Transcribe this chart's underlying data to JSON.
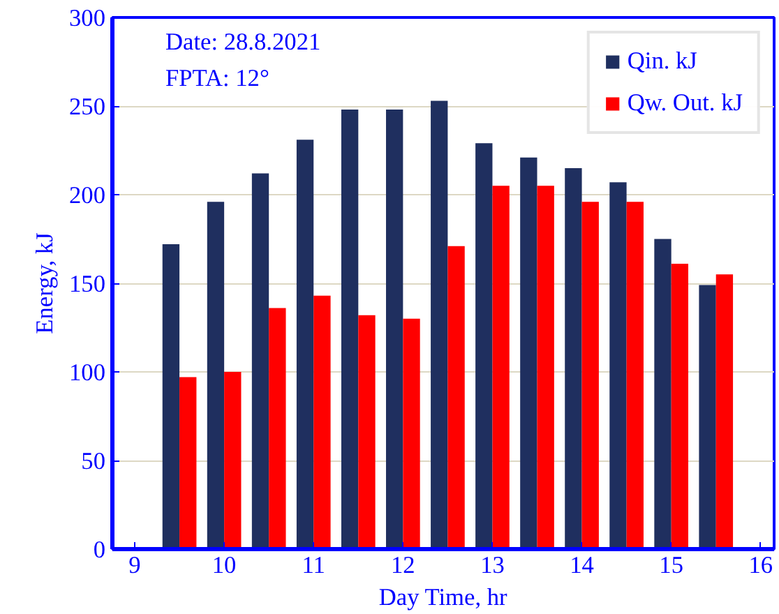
{
  "chart_data": {
    "type": "bar",
    "xlabel": "Day Time, hr",
    "ylabel": "Energy, kJ",
    "x": [
      9.5,
      10,
      10.5,
      11,
      11.5,
      12,
      12.5,
      13,
      13.5,
      14,
      14.5,
      15,
      15.5
    ],
    "series": [
      {
        "name": "Qin. kJ",
        "color": "#1f2f5f",
        "values": [
          172,
          196,
          212,
          231,
          248,
          248,
          253,
          229,
          221,
          215,
          207,
          175,
          149
        ]
      },
      {
        "name": "Qw. Out. kJ",
        "color": "#ff0000",
        "values": [
          97,
          100,
          136,
          143,
          132,
          130,
          171,
          205,
          205,
          196,
          196,
          161,
          155
        ]
      }
    ],
    "xlim": [
      8.75,
      16.15
    ],
    "xticks": [
      9,
      10,
      11,
      12,
      13,
      14,
      15,
      16
    ],
    "ylim": [
      0,
      300
    ],
    "yticks": [
      0,
      50,
      100,
      150,
      200,
      250,
      300
    ],
    "grid": "y",
    "legend": "top right",
    "annotations": [
      "Date:  28.8.2021",
      "FPTA:  12°"
    ]
  }
}
